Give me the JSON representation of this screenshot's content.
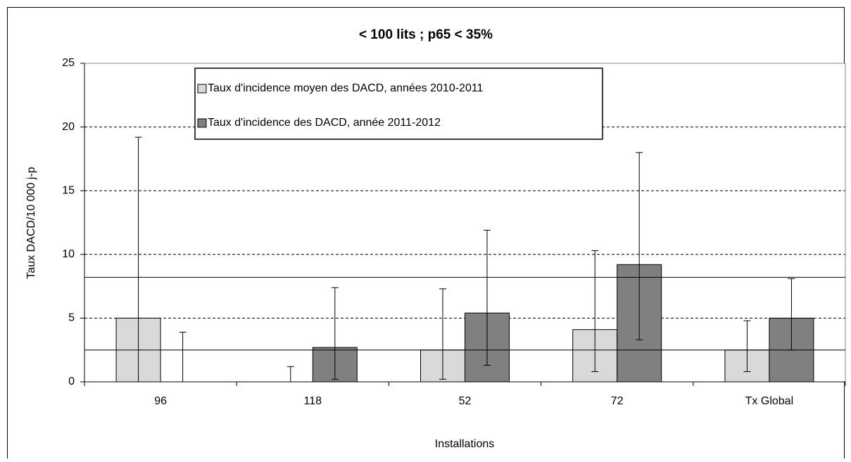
{
  "chart_data": {
    "type": "bar",
    "title": "< 100 lits ; p65 < 35%",
    "y_label": "Taux DACD/10 000 j-p",
    "x_label": "Installations",
    "categories": [
      "96",
      "118",
      "52",
      "72",
      "Tx Global"
    ],
    "series": [
      {
        "name": "Taux d'incidence moyen des DACD, années 2010-2011",
        "color": "#d9d9d9",
        "values": [
          5.0,
          0,
          2.5,
          4.1,
          2.5
        ],
        "error_low": [
          0,
          0,
          0.2,
          0.8,
          0.8
        ],
        "error_high": [
          19.2,
          1.2,
          7.3,
          10.3,
          4.8
        ]
      },
      {
        "name": "Taux d'incidence des DACD, année 2011-2012",
        "color": "#808080",
        "values": [
          0,
          2.7,
          5.4,
          9.2,
          5.0
        ],
        "error_low": [
          0,
          0.2,
          1.3,
          3.3,
          2.5
        ],
        "error_high": [
          3.9,
          7.4,
          11.9,
          18.0,
          8.1
        ]
      }
    ],
    "reference_lines": [
      8.2,
      2.5
    ],
    "ylim": [
      0,
      25
    ],
    "yticks": [
      0,
      5,
      10,
      15,
      20,
      25
    ],
    "grid": true,
    "legend": "top"
  }
}
